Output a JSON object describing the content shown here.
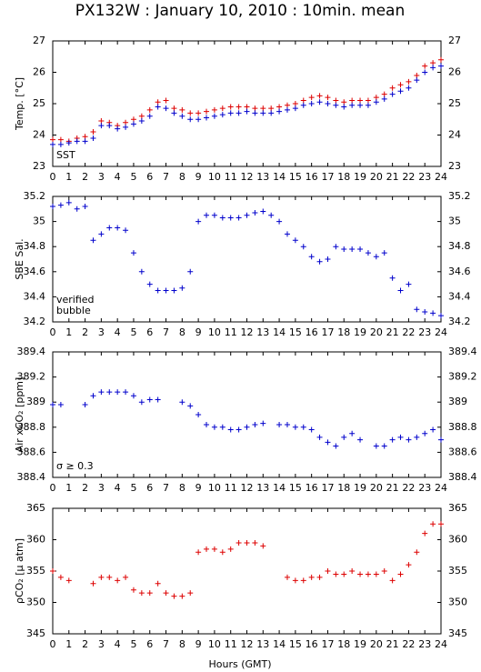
{
  "title": "PX132W : January 10, 2010 : 10min. mean",
  "xlabel": "Hours (GMT)",
  "chart_data": [
    {
      "type": "scatter",
      "ylabel": "Temp. [°C]",
      "xlim": [
        0,
        24
      ],
      "xticks": [
        0,
        1,
        2,
        3,
        4,
        5,
        6,
        7,
        8,
        9,
        10,
        11,
        12,
        13,
        14,
        15,
        16,
        17,
        18,
        19,
        20,
        21,
        22,
        23,
        24
      ],
      "ylim": [
        23,
        27
      ],
      "yticks": [
        23,
        24,
        25,
        26,
        27
      ],
      "x": [
        0,
        0.5,
        1,
        1.5,
        2,
        2.5,
        3,
        3.5,
        4,
        4.5,
        5,
        5.5,
        6,
        6.5,
        7,
        7.5,
        8,
        8.5,
        9,
        9.5,
        10,
        10.5,
        11,
        11.5,
        12,
        12.5,
        13,
        13.5,
        14,
        14.5,
        15,
        15.5,
        16,
        16.5,
        17,
        17.5,
        18,
        18.5,
        19,
        19.5,
        20,
        20.5,
        21,
        21.5,
        22,
        22.5,
        23,
        23.5,
        24
      ],
      "series": [
        {
          "color": "#dd0000",
          "values": [
            23.85,
            23.85,
            23.8,
            23.9,
            23.95,
            24.1,
            24.45,
            24.4,
            24.3,
            24.4,
            24.5,
            24.6,
            24.8,
            25.05,
            25.1,
            24.85,
            24.8,
            24.7,
            24.7,
            24.75,
            24.8,
            24.85,
            24.9,
            24.9,
            24.9,
            24.85,
            24.85,
            24.85,
            24.9,
            24.95,
            25.0,
            25.1,
            25.2,
            25.25,
            25.2,
            25.1,
            25.05,
            25.1,
            25.1,
            25.1,
            25.2,
            25.3,
            25.5,
            25.6,
            25.7,
            25.9,
            26.2,
            26.3,
            26.4
          ]
        },
        {
          "name": "SST",
          "color": "#0000cc",
          "values": [
            23.7,
            23.7,
            23.75,
            23.8,
            23.8,
            23.9,
            24.3,
            24.3,
            24.2,
            24.25,
            24.35,
            24.45,
            24.6,
            24.9,
            24.85,
            24.7,
            24.6,
            24.5,
            24.5,
            24.55,
            24.6,
            24.65,
            24.7,
            24.7,
            24.75,
            24.7,
            24.7,
            24.7,
            24.75,
            24.8,
            24.85,
            24.95,
            25.0,
            25.05,
            25.0,
            24.95,
            24.9,
            24.95,
            24.95,
            24.95,
            25.05,
            25.15,
            25.3,
            25.4,
            25.5,
            25.75,
            26.0,
            26.15,
            26.2
          ]
        }
      ]
    },
    {
      "type": "scatter",
      "ylabel": "SBE Sal.",
      "xlim": [
        0,
        24
      ],
      "xticks": [
        0,
        1,
        2,
        3,
        4,
        5,
        6,
        7,
        8,
        9,
        10,
        11,
        12,
        13,
        14,
        15,
        16,
        17,
        18,
        19,
        20,
        21,
        22,
        23,
        24
      ],
      "ylim": [
        34.2,
        35.2
      ],
      "yticks": [
        34.2,
        34.4,
        34.6,
        34.8,
        35,
        35.2
      ],
      "x": [
        0,
        0.5,
        1,
        1.5,
        2,
        2.5,
        3,
        3.5,
        4,
        4.5,
        5,
        5.5,
        6,
        6.5,
        7,
        7.5,
        8,
        8.5,
        9,
        9.5,
        10,
        10.5,
        11,
        11.5,
        12,
        12.5,
        13,
        13.5,
        14,
        14.5,
        15,
        15.5,
        16,
        16.5,
        17,
        17.5,
        18,
        18.5,
        19,
        19.5,
        20,
        20.5,
        21,
        21.5,
        22,
        22.5,
        23,
        23.5,
        24
      ],
      "series": [
        {
          "name": "verified",
          "color": "#0000cc",
          "values": [
            35.12,
            35.13,
            35.15,
            35.1,
            35.12,
            34.85,
            34.9,
            34.95,
            34.95,
            34.93,
            34.75,
            34.6,
            34.5,
            34.45,
            34.45,
            34.45,
            34.47,
            34.6,
            35.0,
            35.05,
            35.05,
            35.03,
            35.03,
            35.03,
            35.05,
            35.07,
            35.08,
            35.05,
            35.0,
            34.9,
            34.85,
            34.8,
            34.72,
            34.68,
            34.7,
            34.8,
            34.78,
            34.78,
            34.78,
            34.75,
            34.72,
            34.75,
            34.55,
            34.45,
            34.5,
            34.3,
            34.28,
            34.27,
            34.25
          ]
        }
      ],
      "annotations": [
        {
          "text": "bubble",
          "color": "#cc33cc"
        }
      ]
    },
    {
      "type": "scatter",
      "ylabel": "Air xCO₂ [ppm]",
      "xlim": [
        0,
        24
      ],
      "xticks": [
        0,
        1,
        2,
        3,
        4,
        5,
        6,
        7,
        8,
        9,
        10,
        11,
        12,
        13,
        14,
        15,
        16,
        17,
        18,
        19,
        20,
        21,
        22,
        23,
        24
      ],
      "ylim": [
        388.4,
        389.4
      ],
      "yticks": [
        388.4,
        388.6,
        388.8,
        389,
        389.2,
        389.4
      ],
      "x": [
        0,
        0.5,
        1,
        1.5,
        2,
        2.5,
        3,
        3.5,
        4,
        4.5,
        5,
        5.5,
        6,
        6.5,
        7,
        7.5,
        8,
        8.5,
        9,
        9.5,
        10,
        10.5,
        11,
        11.5,
        12,
        12.5,
        13,
        13.5,
        14,
        14.5,
        15,
        15.5,
        16,
        16.5,
        17,
        17.5,
        18,
        18.5,
        19,
        19.5,
        20,
        20.5,
        21,
        21.5,
        22,
        22.5,
        23,
        23.5,
        24
      ],
      "series": [
        {
          "color": "#0000cc",
          "values": [
            388.98,
            388.98,
            null,
            null,
            388.98,
            389.05,
            389.08,
            389.08,
            389.08,
            389.08,
            389.05,
            389.0,
            389.02,
            389.02,
            null,
            null,
            389.0,
            388.97,
            388.9,
            388.82,
            388.8,
            388.8,
            388.78,
            388.78,
            388.8,
            388.82,
            388.83,
            null,
            388.82,
            388.82,
            388.8,
            388.8,
            388.78,
            388.72,
            388.68,
            388.65,
            388.72,
            388.75,
            388.7,
            null,
            388.65,
            388.65,
            388.7,
            388.72,
            388.7,
            388.72,
            388.75,
            388.78,
            388.7
          ]
        }
      ],
      "annotations": [
        {
          "text": "σ ≥ 0.3",
          "color": "#cc33cc"
        }
      ]
    },
    {
      "type": "scatter",
      "ylabel": "ρCO₂ [μ atm]",
      "xlim": [
        0,
        24
      ],
      "xticks": [
        0,
        1,
        2,
        3,
        4,
        5,
        6,
        7,
        8,
        9,
        10,
        11,
        12,
        13,
        14,
        15,
        16,
        17,
        18,
        19,
        20,
        21,
        22,
        23,
        24
      ],
      "ylim": [
        345,
        365
      ],
      "yticks": [
        345,
        350,
        355,
        360,
        365
      ],
      "x": [
        0,
        0.5,
        1,
        1.5,
        2,
        2.5,
        3,
        3.5,
        4,
        4.5,
        5,
        5.5,
        6,
        6.5,
        7,
        7.5,
        8,
        8.5,
        9,
        9.5,
        10,
        10.5,
        11,
        11.5,
        12,
        12.5,
        13,
        13.5,
        14,
        14.5,
        15,
        15.5,
        16,
        16.5,
        17,
        17.5,
        18,
        18.5,
        19,
        19.5,
        20,
        20.5,
        21,
        21.5,
        22,
        22.5,
        23,
        23.5,
        24
      ],
      "series": [
        {
          "color": "#dd0000",
          "values": [
            355,
            354,
            353.5,
            null,
            null,
            353,
            354,
            354,
            353.5,
            354,
            352,
            351.5,
            351.5,
            353,
            351.5,
            351,
            351,
            351.5,
            358,
            358.5,
            358.5,
            358,
            358.5,
            359.5,
            359.5,
            359.5,
            359,
            null,
            null,
            354,
            353.5,
            353.5,
            354,
            354,
            355,
            354.5,
            354.5,
            355,
            354.5,
            354.5,
            354.5,
            355,
            353.5,
            354.5,
            356,
            358,
            361,
            362.5,
            362.5
          ]
        }
      ]
    }
  ]
}
